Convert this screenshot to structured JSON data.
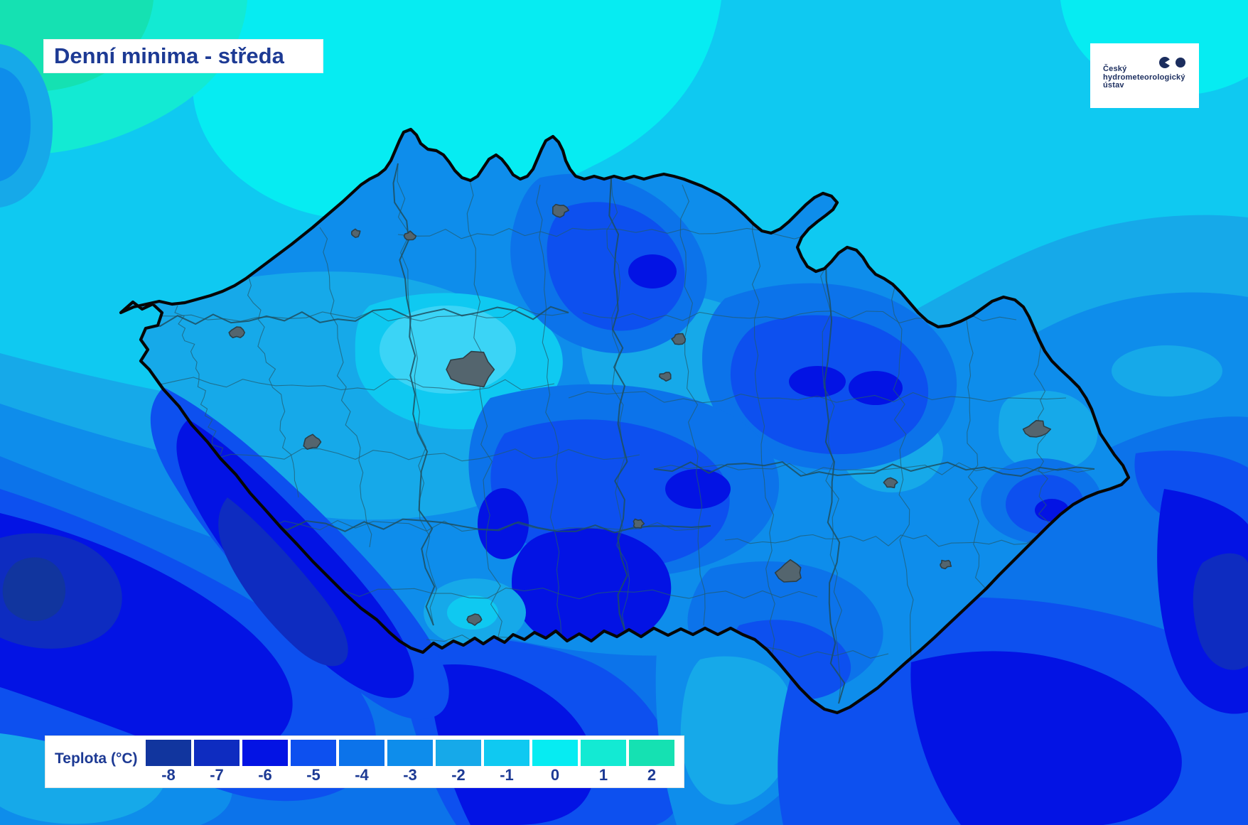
{
  "title": "Denní minima - středa",
  "logo": {
    "org_line1": "Český",
    "org_line2": "hydrometeorologický",
    "org_line3": "ústav"
  },
  "legend": {
    "label": "Teplota (°C)",
    "items": [
      {
        "value": "-8",
        "color": "#11359e"
      },
      {
        "value": "-7",
        "color": "#0e2cc0"
      },
      {
        "value": "-6",
        "color": "#0313e4"
      },
      {
        "value": "-5",
        "color": "#0d50ef"
      },
      {
        "value": "-4",
        "color": "#0c73ea"
      },
      {
        "value": "-3",
        "color": "#0e8deb"
      },
      {
        "value": "-2",
        "color": "#16a9e9"
      },
      {
        "value": "-1",
        "color": "#0fc9f1"
      },
      {
        "value": "0",
        "color": "#06ecf2"
      },
      {
        "value": "1",
        "color": "#13ead3"
      },
      {
        "value": "2",
        "color": "#15e1b2"
      }
    ]
  },
  "map_colors": {
    "country_border": "#060606",
    "district_line": "#235c6e",
    "region_line": "#1d4f60",
    "city_fill": "#54656e",
    "city_stroke": "#2c3f47",
    "prague_halo": "#3bd4f6",
    "title_text": "#1d3a94",
    "logo_text": "#1b2d5e"
  }
}
